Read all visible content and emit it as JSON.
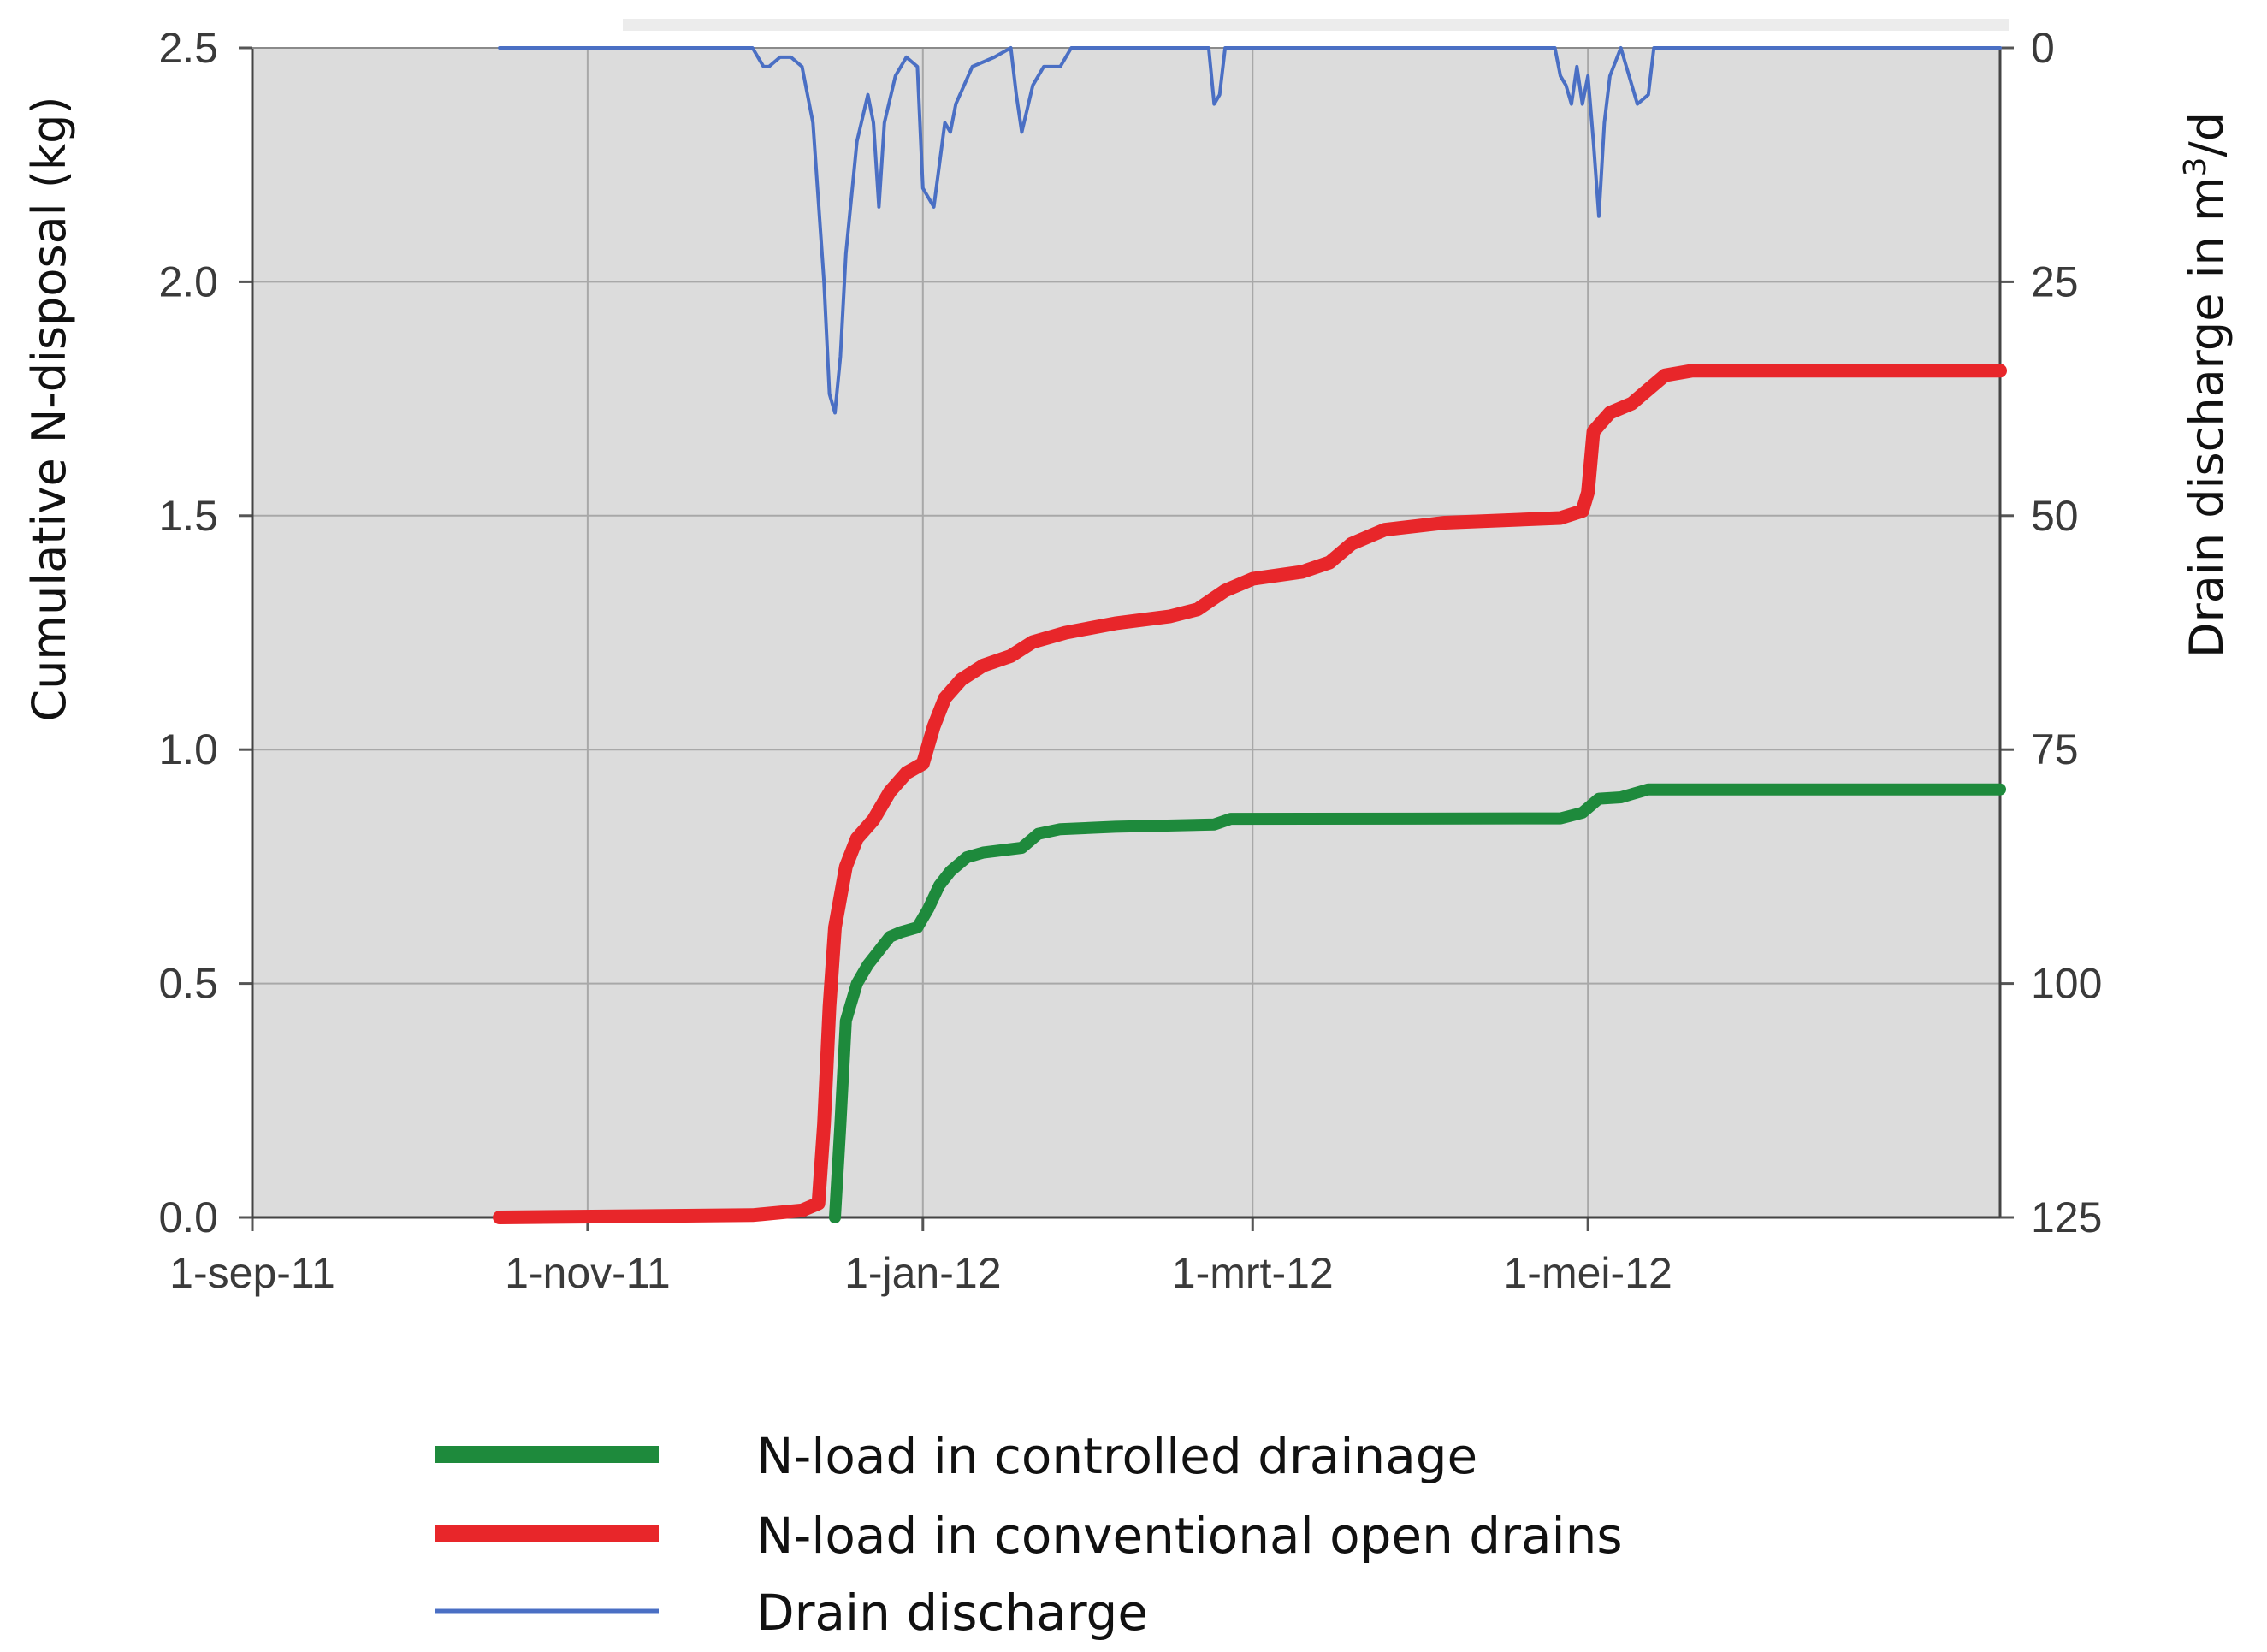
{
  "chart_data": {
    "type": "line",
    "ylabel": "Cumulative N-disposal (kg)",
    "y2label_prefix": "Drain discharge in m",
    "y2label_sup": "3",
    "y2label_suffix": "/d",
    "x_ticks": [
      "1-sep-11",
      "1-nov-11",
      "1-jan-12",
      "1-mrt-12",
      "1-mei-12"
    ],
    "x_range": [
      "2011-09-01",
      "2012-07-15"
    ],
    "y_ticks": [
      "0.0",
      "0.5",
      "1.0",
      "1.5",
      "2.0",
      "2.5"
    ],
    "ylim": [
      0,
      2.5
    ],
    "y2_ticks": [
      "0",
      "25",
      "50",
      "75",
      "100",
      "125"
    ],
    "y2lim": [
      125,
      0
    ],
    "y2_inverted": true,
    "grid": true,
    "legend_position": "bottom",
    "series": [
      {
        "name": "N-load in controlled drainage",
        "axis": "left",
        "color": "#1e8a3c",
        "points": [
          [
            "2011-12-16",
            0.0
          ],
          [
            "2011-12-17",
            0.2
          ],
          [
            "2011-12-18",
            0.42
          ],
          [
            "2011-12-20",
            0.5
          ],
          [
            "2011-12-22",
            0.54
          ],
          [
            "2011-12-24",
            0.57
          ],
          [
            "2011-12-26",
            0.6
          ],
          [
            "2011-12-28",
            0.61
          ],
          [
            "2011-12-31",
            0.62
          ],
          [
            "2012-01-02",
            0.66
          ],
          [
            "2012-01-04",
            0.71
          ],
          [
            "2012-01-06",
            0.74
          ],
          [
            "2012-01-09",
            0.77
          ],
          [
            "2012-01-12",
            0.78
          ],
          [
            "2012-01-19",
            0.79
          ],
          [
            "2012-01-22",
            0.82
          ],
          [
            "2012-01-26",
            0.83
          ],
          [
            "2012-02-05",
            0.835
          ],
          [
            "2012-02-23",
            0.84
          ],
          [
            "2012-02-26",
            0.852
          ],
          [
            "2012-04-26",
            0.853
          ],
          [
            "2012-04-30",
            0.865
          ],
          [
            "2012-05-03",
            0.895
          ],
          [
            "2012-05-07",
            0.898
          ],
          [
            "2012-05-12",
            0.915
          ],
          [
            "2012-07-15",
            0.915
          ]
        ]
      },
      {
        "name": "N-load in conventional open drains",
        "axis": "left",
        "color": "#e8262a",
        "points": [
          [
            "2011-10-16",
            0.0
          ],
          [
            "2011-12-01",
            0.005
          ],
          [
            "2011-12-10",
            0.015
          ],
          [
            "2011-12-13",
            0.03
          ],
          [
            "2011-12-14",
            0.2
          ],
          [
            "2011-12-15",
            0.45
          ],
          [
            "2011-12-16",
            0.62
          ],
          [
            "2011-12-18",
            0.75
          ],
          [
            "2011-12-20",
            0.81
          ],
          [
            "2011-12-23",
            0.85
          ],
          [
            "2011-12-26",
            0.91
          ],
          [
            "2011-12-29",
            0.95
          ],
          [
            "2012-01-01",
            0.97
          ],
          [
            "2012-01-03",
            1.05
          ],
          [
            "2012-01-05",
            1.11
          ],
          [
            "2012-01-08",
            1.15
          ],
          [
            "2012-01-12",
            1.18
          ],
          [
            "2012-01-17",
            1.2
          ],
          [
            "2012-01-21",
            1.23
          ],
          [
            "2012-01-27",
            1.25
          ],
          [
            "2012-02-05",
            1.27
          ],
          [
            "2012-02-15",
            1.285
          ],
          [
            "2012-02-20",
            1.3
          ],
          [
            "2012-02-25",
            1.34
          ],
          [
            "2012-03-01",
            1.365
          ],
          [
            "2012-03-10",
            1.38
          ],
          [
            "2012-03-15",
            1.4
          ],
          [
            "2012-03-19",
            1.44
          ],
          [
            "2012-03-25",
            1.47
          ],
          [
            "2012-04-05",
            1.485
          ],
          [
            "2012-04-26",
            1.495
          ],
          [
            "2012-04-30",
            1.51
          ],
          [
            "2012-05-01",
            1.55
          ],
          [
            "2012-05-02",
            1.68
          ],
          [
            "2012-05-05",
            1.72
          ],
          [
            "2012-05-09",
            1.74
          ],
          [
            "2012-05-12",
            1.77
          ],
          [
            "2012-05-15",
            1.8
          ],
          [
            "2012-05-20",
            1.81
          ],
          [
            "2012-07-15",
            1.81
          ]
        ]
      },
      {
        "name": "Drain discharge",
        "axis": "right",
        "color": "#4a6fc4",
        "points": [
          [
            "2011-10-16",
            0
          ],
          [
            "2011-12-01",
            0
          ],
          [
            "2011-12-03",
            2
          ],
          [
            "2011-12-04",
            2
          ],
          [
            "2011-12-06",
            1
          ],
          [
            "2011-12-08",
            1
          ],
          [
            "2011-12-10",
            2
          ],
          [
            "2011-12-12",
            8
          ],
          [
            "2011-12-14",
            25
          ],
          [
            "2011-12-15",
            37
          ],
          [
            "2011-12-16",
            39
          ],
          [
            "2011-12-17",
            33
          ],
          [
            "2011-12-18",
            22
          ],
          [
            "2011-12-20",
            10
          ],
          [
            "2011-12-22",
            5
          ],
          [
            "2011-12-23",
            8
          ],
          [
            "2011-12-24",
            17
          ],
          [
            "2011-12-25",
            8
          ],
          [
            "2011-12-27",
            3
          ],
          [
            "2011-12-29",
            1
          ],
          [
            "2011-12-31",
            2
          ],
          [
            "2012-01-01",
            15
          ],
          [
            "2012-01-03",
            17
          ],
          [
            "2012-01-05",
            8
          ],
          [
            "2012-01-06",
            9
          ],
          [
            "2012-01-07",
            6
          ],
          [
            "2012-01-10",
            2
          ],
          [
            "2012-01-14",
            1
          ],
          [
            "2012-01-17",
            0
          ],
          [
            "2012-01-18",
            5
          ],
          [
            "2012-01-19",
            9
          ],
          [
            "2012-01-21",
            4
          ],
          [
            "2012-01-23",
            2
          ],
          [
            "2012-01-26",
            2
          ],
          [
            "2012-01-28",
            0
          ],
          [
            "2012-02-22",
            0
          ],
          [
            "2012-02-23",
            6
          ],
          [
            "2012-02-24",
            5
          ],
          [
            "2012-02-25",
            0
          ],
          [
            "2012-04-25",
            0
          ],
          [
            "2012-04-26",
            3
          ],
          [
            "2012-04-27",
            4
          ],
          [
            "2012-04-28",
            6
          ],
          [
            "2012-04-29",
            2
          ],
          [
            "2012-04-30",
            6
          ],
          [
            "2012-05-01",
            3
          ],
          [
            "2012-05-02",
            10
          ],
          [
            "2012-05-03",
            18
          ],
          [
            "2012-05-04",
            8
          ],
          [
            "2012-05-05",
            3
          ],
          [
            "2012-05-07",
            0
          ],
          [
            "2012-05-08",
            2
          ],
          [
            "2012-05-10",
            6
          ],
          [
            "2012-05-12",
            5
          ],
          [
            "2012-05-13",
            0
          ],
          [
            "2012-07-15",
            0
          ]
        ]
      }
    ]
  }
}
